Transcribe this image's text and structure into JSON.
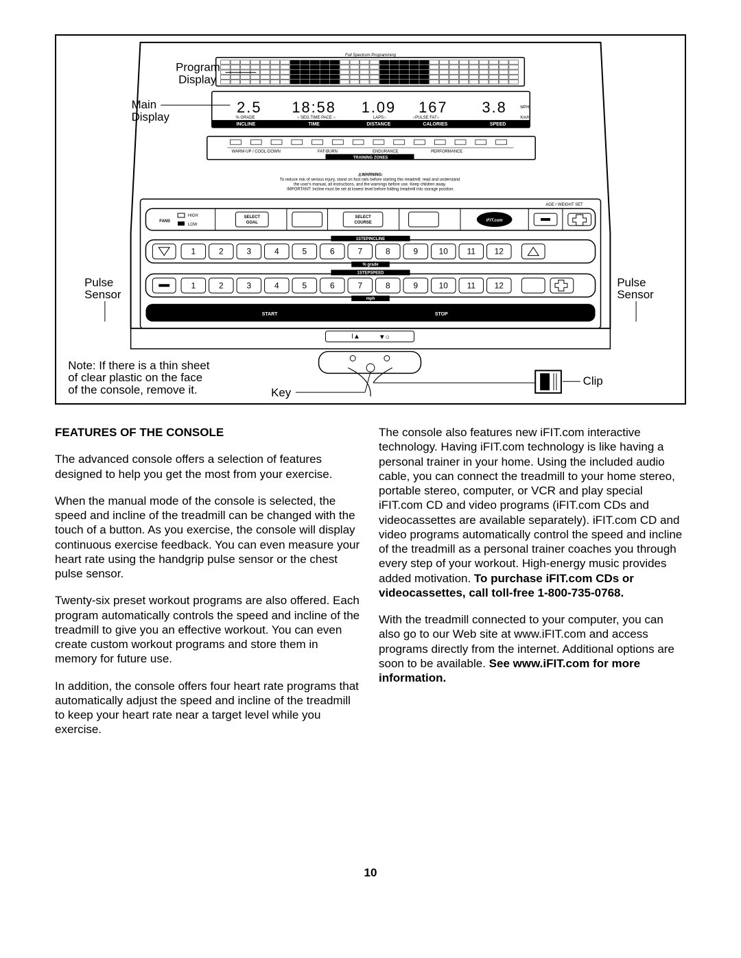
{
  "diagram": {
    "callouts": {
      "program_display": "Program\nDisplay",
      "main_display": "Main\nDisplay",
      "pulse_sensor_left": "Pulse\nSensor",
      "pulse_sensor_right": "Pulse\nSensor",
      "clip": "Clip",
      "key": "Key"
    },
    "note": "Note: If there is a thin sheet\nof clear plastic on the face\nof the console, remove it.",
    "program_header": "Full Spectrum Programming",
    "main_values": {
      "grade": "2.5",
      "time": "18:58",
      "laps": "1.09",
      "pulse": "167",
      "speed": "3.8"
    },
    "main_units": {
      "mph": "MPH",
      "kmh": "Km/H"
    },
    "main_row1": {
      "grade": "% GRADE",
      "time": "SEG.TIME PACE",
      "laps": "LAPS",
      "pulse": "PULSE  FAT",
      "speed": ""
    },
    "main_row2": {
      "incline": "INCLINE",
      "time": "TIME",
      "distance": "DISTANCE",
      "calories": "CALORIES",
      "speed": "SPEED"
    },
    "zones": {
      "warmup": "WARM-UP / COOL-DOWN",
      "fatburn": "FAT-BURN",
      "endurance": "ENDURANCE",
      "performance": "PERFORMANCE",
      "label": "TRAINING ZONES"
    },
    "warning": {
      "title": "WARNING:",
      "text": "To reduce risk of serious injury, stand on foot rails before starting this treadmill; read and understand\nthe user's manual, all instructions, and the warnings before use. Keep children away.\nIMPORTANT: Incline must be set at lowest level before folding treadmill into storage position."
    },
    "controls": {
      "age_weight": "AGE / WEIGHT SET",
      "fans": "FANS",
      "fans_high": "HIGH",
      "fans_low": "LOW",
      "select_goal": "SELECT\nGOAL",
      "select_course": "SELECT\nCOURSE",
      "ifit": "iFIT.com",
      "incline_label": "1STEPINCLINE",
      "incline_sub": "% grade",
      "speed_label": "1STEPSPEED",
      "speed_sub": "mph",
      "numbers": [
        "1",
        "2",
        "3",
        "4",
        "5",
        "6",
        "7",
        "8",
        "9",
        "10",
        "11",
        "12"
      ],
      "start": "START",
      "stop": "STOP"
    }
  },
  "body": {
    "heading": "FEATURES OF THE CONSOLE",
    "left": {
      "p1": "The advanced console offers a selection of features designed to help you get the most from your exercise.",
      "p2": "When the manual mode of the console is selected, the speed and incline of the treadmill can be changed with the touch of a button. As you exercise, the console will display continuous exercise feedback. You can even measure your heart rate using the handgrip pulse sensor or the chest pulse sensor.",
      "p3": "Twenty-six preset workout programs are also offered. Each program automatically controls the speed and incline of the treadmill to give you an effective workout. You can even create custom workout programs and store them in memory for future use.",
      "p4": "In addition, the console offers four heart rate programs that automatically adjust the speed and incline of the treadmill to keep your heart rate near a target level while you exercise."
    },
    "right": {
      "p1a": "The console also features new iFIT.com interactive technology. Having iFIT.com technology is like having a personal trainer in your home. Using the included audio cable, you can connect the treadmill to your home stereo, portable stereo, computer, or VCR and play special iFIT.com CD and video programs (iFIT.com CDs and videocassettes are available separately). iFIT.com CD and video programs automatically control the speed and incline of the treadmill as a personal trainer coaches you through every step of your workout. High-energy music provides added motivation. ",
      "p1b": "To purchase iFIT.com CDs or videocassettes, call toll-free 1-800-735-0768.",
      "p2a": "With the treadmill connected to your computer, you can also go to our Web site at www.iFIT.com and access programs directly from the internet. Additional options are soon to be available. ",
      "p2b": "See www.iFIT.com for more information."
    }
  },
  "page_number": "10"
}
